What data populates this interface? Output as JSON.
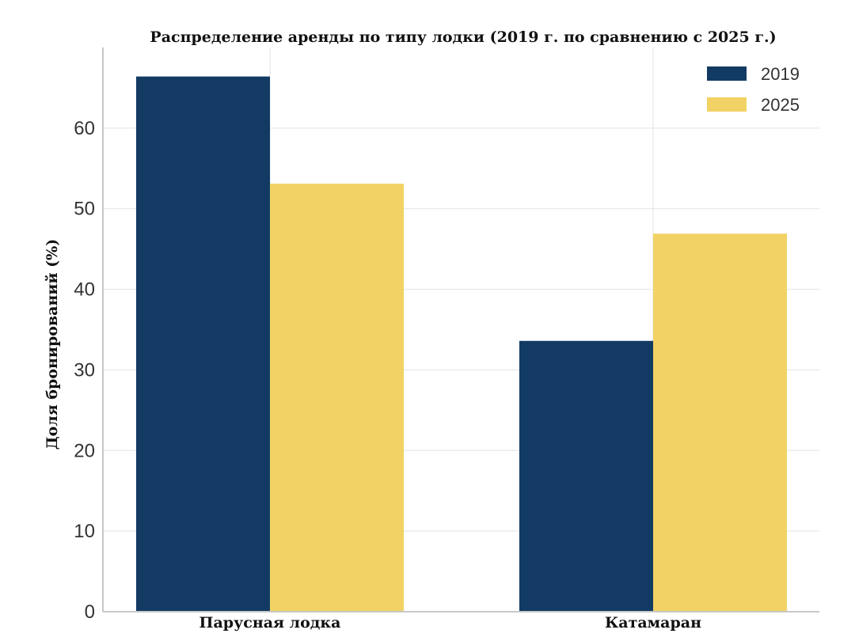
{
  "chart_data": {
    "type": "bar",
    "title": "Распределение аренды по типу лодки (2019 г. по сравнению с 2025 г.)",
    "xlabel": "",
    "ylabel": "Доля бронирований (%)",
    "categories": [
      "Парусная лодка",
      "Катамаран"
    ],
    "series": [
      {
        "name": "2019",
        "values": [
          66.4,
          33.6
        ],
        "color": "#133a63"
      },
      {
        "name": "2025",
        "values": [
          53.1,
          46.9
        ],
        "color": "#f2d264"
      }
    ],
    "ylim": [
      0,
      70
    ],
    "yticks": [
      0,
      10,
      20,
      30,
      40,
      50,
      60
    ],
    "grid": true,
    "legend_position": "top-right"
  }
}
